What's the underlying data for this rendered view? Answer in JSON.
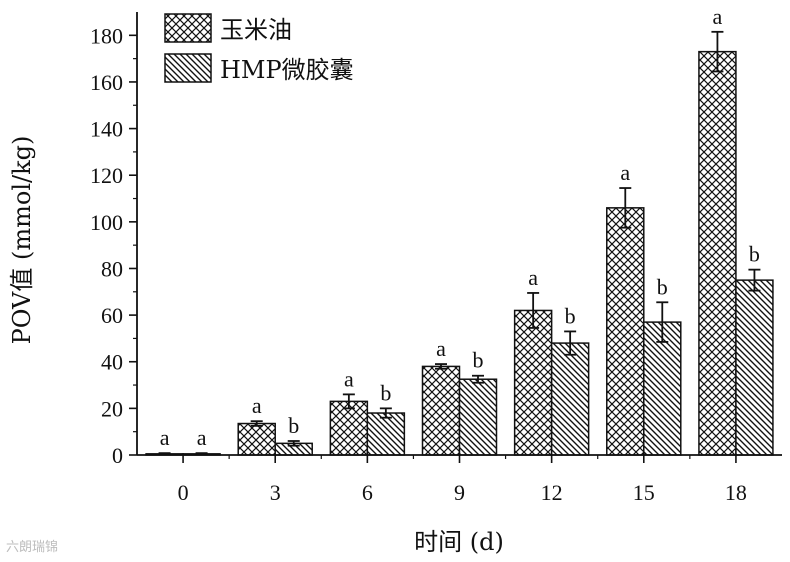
{
  "chart_data": {
    "type": "bar",
    "xlabel": "时间 (d)",
    "ylabel": "POV值 (mmol/kg)",
    "categories": [
      "0",
      "3",
      "6",
      "9",
      "12",
      "15",
      "18"
    ],
    "ylim": [
      0,
      190
    ],
    "yticks": [
      0,
      20,
      40,
      60,
      80,
      100,
      120,
      140,
      160,
      180
    ],
    "grid": false,
    "legend_position": "top-left",
    "series": [
      {
        "name": "玉米油",
        "pattern": "crosshatch",
        "values": [
          0.5,
          13.5,
          23,
          38,
          62,
          106,
          173
        ],
        "errors": [
          0.3,
          1.0,
          3.0,
          1.0,
          7.5,
          8.5,
          8.5
        ],
        "labels": [
          "a",
          "a",
          "a",
          "a",
          "a",
          "a",
          "a"
        ]
      },
      {
        "name": "HMP微胶囊",
        "pattern": "diagonal",
        "values": [
          0.5,
          5,
          18,
          32.5,
          48,
          57,
          75
        ],
        "errors": [
          0.3,
          1.0,
          2.0,
          1.5,
          5.0,
          8.5,
          4.5
        ],
        "labels": [
          "a",
          "b",
          "b",
          "b",
          "b",
          "b",
          "b"
        ]
      }
    ]
  },
  "watermark": "六朗瑞锦"
}
